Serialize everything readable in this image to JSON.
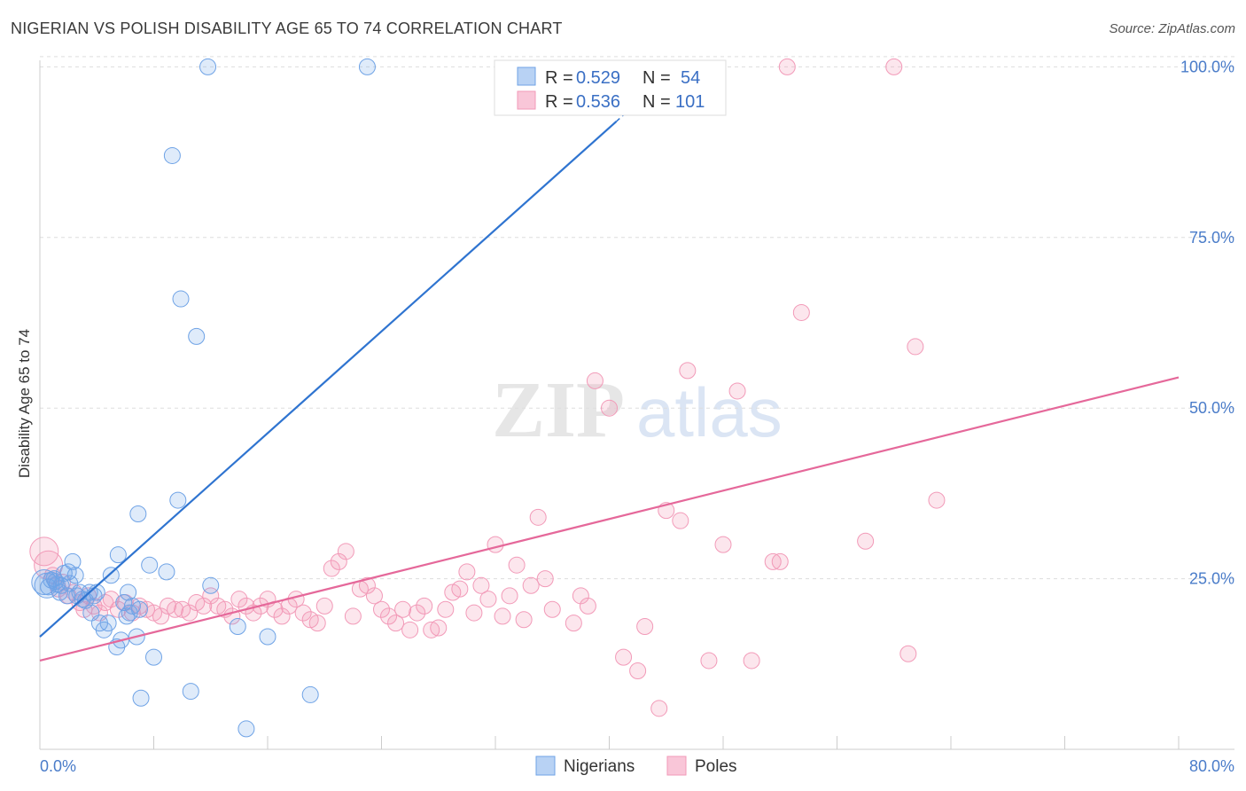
{
  "title": "NIGERIAN VS POLISH DISABILITY AGE 65 TO 74 CORRELATION CHART",
  "source": "Source: ZipAtlas.com",
  "colors": {
    "nigerians": "#6fa3e6",
    "nigerians_line": "#2f74d0",
    "poles": "#f29ab8",
    "poles_line": "#e5689a",
    "tick": "#4a7cc9",
    "grid": "#dddddd"
  },
  "legend": {
    "r_label": "R =",
    "n_label": "N =",
    "nigerians_r": "0.529",
    "nigerians_n": "54",
    "poles_r": "0.536",
    "poles_n": "101"
  },
  "chart_data": {
    "type": "scatter",
    "title": "NIGERIAN VS POLISH DISABILITY AGE 65 TO 74 CORRELATION CHART",
    "xlabel": "",
    "ylabel": "Disability Age 65 to 74",
    "xlim": [
      0,
      80
    ],
    "ylim": [
      0,
      102
    ],
    "x_tick_labels": [
      "0.0%",
      "80.0%"
    ],
    "y_tick_labels": [
      "25.0%",
      "50.0%",
      "75.0%",
      "100.0%"
    ],
    "y_ticks": [
      25,
      50,
      75,
      100
    ],
    "grid": true,
    "legend_position": "top-center",
    "series": [
      {
        "name": "Nigerians",
        "trendline": {
          "x": [
            0,
            40.5
          ],
          "y": [
            16.5,
            92
          ]
        },
        "points": [
          [
            0.3,
            24.5
          ],
          [
            0.5,
            24.0
          ],
          [
            0.8,
            24.8
          ],
          [
            1.0,
            25.0
          ],
          [
            1.2,
            24.2
          ],
          [
            1.4,
            23.0
          ],
          [
            1.5,
            24.0
          ],
          [
            1.7,
            25.8
          ],
          [
            1.9,
            22.5
          ],
          [
            2.0,
            26.0
          ],
          [
            2.3,
            27.5
          ],
          [
            2.5,
            25.5
          ],
          [
            2.6,
            22.5
          ],
          [
            2.8,
            23.0
          ],
          [
            3.0,
            22.0
          ],
          [
            3.2,
            21.8
          ],
          [
            3.5,
            23.0
          ],
          [
            3.6,
            20.0
          ],
          [
            3.8,
            22.5
          ],
          [
            4.0,
            23.0
          ],
          [
            4.2,
            18.5
          ],
          [
            4.5,
            17.5
          ],
          [
            4.8,
            18.5
          ],
          [
            5.0,
            25.5
          ],
          [
            5.4,
            15.0
          ],
          [
            5.5,
            28.5
          ],
          [
            5.7,
            16.0
          ],
          [
            5.9,
            21.5
          ],
          [
            6.1,
            19.5
          ],
          [
            6.2,
            23.0
          ],
          [
            6.3,
            20.0
          ],
          [
            6.5,
            21.0
          ],
          [
            6.8,
            16.5
          ],
          [
            6.9,
            34.5
          ],
          [
            7.0,
            20.5
          ],
          [
            7.1,
            7.5
          ],
          [
            7.7,
            27.0
          ],
          [
            8.0,
            13.5
          ],
          [
            8.9,
            26.0
          ],
          [
            9.3,
            87.0
          ],
          [
            9.7,
            36.5
          ],
          [
            9.9,
            66.0
          ],
          [
            10.6,
            8.5
          ],
          [
            11.0,
            60.5
          ],
          [
            11.8,
            100.0
          ],
          [
            12.0,
            24.0
          ],
          [
            13.9,
            18.0
          ],
          [
            14.5,
            3.0
          ],
          [
            16.0,
            16.5
          ],
          [
            19.0,
            8.0
          ],
          [
            23.0,
            100.0
          ],
          [
            0.6,
            23.8
          ],
          [
            1.1,
            24.6
          ],
          [
            2.1,
            24.3
          ]
        ]
      },
      {
        "name": "Poles",
        "trendline": {
          "x": [
            0,
            80
          ],
          "y": [
            13,
            54.5
          ]
        },
        "points": [
          [
            0.3,
            29.0
          ],
          [
            0.6,
            27.0
          ],
          [
            0.9,
            25.5
          ],
          [
            1.3,
            23.5
          ],
          [
            1.6,
            24.5
          ],
          [
            2.0,
            22.5
          ],
          [
            2.4,
            23.0
          ],
          [
            2.8,
            21.5
          ],
          [
            3.1,
            20.5
          ],
          [
            3.4,
            22.5
          ],
          [
            3.8,
            21.0
          ],
          [
            4.2,
            20.0
          ],
          [
            4.6,
            21.5
          ],
          [
            5.0,
            22.0
          ],
          [
            5.5,
            20.5
          ],
          [
            6.0,
            21.5
          ],
          [
            6.5,
            20.0
          ],
          [
            7.0,
            21.0
          ],
          [
            7.5,
            20.5
          ],
          [
            8.0,
            20.0
          ],
          [
            8.5,
            19.5
          ],
          [
            9.0,
            21.0
          ],
          [
            9.5,
            20.5
          ],
          [
            10.0,
            20.5
          ],
          [
            10.5,
            20.0
          ],
          [
            11.0,
            21.5
          ],
          [
            11.5,
            21.0
          ],
          [
            12.0,
            22.5
          ],
          [
            12.5,
            21.0
          ],
          [
            13.0,
            20.5
          ],
          [
            13.5,
            19.5
          ],
          [
            14.0,
            22.0
          ],
          [
            14.5,
            21.0
          ],
          [
            15.0,
            20.0
          ],
          [
            15.5,
            21.0
          ],
          [
            16.0,
            22.0
          ],
          [
            16.5,
            20.5
          ],
          [
            17.0,
            19.5
          ],
          [
            17.5,
            21.0
          ],
          [
            18.0,
            22.0
          ],
          [
            18.5,
            20.0
          ],
          [
            19.0,
            19.0
          ],
          [
            19.5,
            18.5
          ],
          [
            20.0,
            21.0
          ],
          [
            20.5,
            26.5
          ],
          [
            21.0,
            27.5
          ],
          [
            21.5,
            29.0
          ],
          [
            22.0,
            19.5
          ],
          [
            22.5,
            23.5
          ],
          [
            23.0,
            24.0
          ],
          [
            23.5,
            22.5
          ],
          [
            24.0,
            20.5
          ],
          [
            24.5,
            19.5
          ],
          [
            25.0,
            18.5
          ],
          [
            25.5,
            20.5
          ],
          [
            26.0,
            17.5
          ],
          [
            26.5,
            20.0
          ],
          [
            27.0,
            21.0
          ],
          [
            27.5,
            17.5
          ],
          [
            28.0,
            17.8
          ],
          [
            28.5,
            20.5
          ],
          [
            29.0,
            23.0
          ],
          [
            29.5,
            23.5
          ],
          [
            30.0,
            26.0
          ],
          [
            30.5,
            20.0
          ],
          [
            31.0,
            24.0
          ],
          [
            31.5,
            22.0
          ],
          [
            32.0,
            30.0
          ],
          [
            32.5,
            19.5
          ],
          [
            33.0,
            22.5
          ],
          [
            33.5,
            27.0
          ],
          [
            34.0,
            19.0
          ],
          [
            34.5,
            24.0
          ],
          [
            35.0,
            34.0
          ],
          [
            35.5,
            25.0
          ],
          [
            36.0,
            20.5
          ],
          [
            37.5,
            18.5
          ],
          [
            38.0,
            22.5
          ],
          [
            38.5,
            21.0
          ],
          [
            39.0,
            54.0
          ],
          [
            40.0,
            50.0
          ],
          [
            41.0,
            13.5
          ],
          [
            42.0,
            11.5
          ],
          [
            42.5,
            18.0
          ],
          [
            43.5,
            6.0
          ],
          [
            44.0,
            35.0
          ],
          [
            45.0,
            33.5
          ],
          [
            45.5,
            55.5
          ],
          [
            47.0,
            13.0
          ],
          [
            48.0,
            30.0
          ],
          [
            49.0,
            52.5
          ],
          [
            50.0,
            13.0
          ],
          [
            51.5,
            27.5
          ],
          [
            52.0,
            27.5
          ],
          [
            52.5,
            100.0
          ],
          [
            53.5,
            64.0
          ],
          [
            58.0,
            30.5
          ],
          [
            60.0,
            100.0
          ],
          [
            61.0,
            14.0
          ],
          [
            61.5,
            59.0
          ],
          [
            63.0,
            36.5
          ]
        ]
      }
    ]
  },
  "bottom_legend": {
    "nigerians": "Nigerians",
    "poles": "Poles"
  }
}
